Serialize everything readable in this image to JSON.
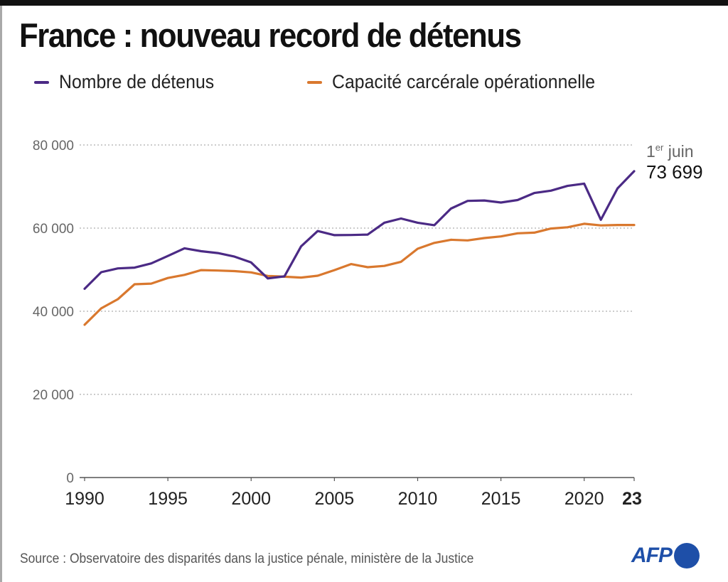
{
  "title": "France : nouveau record de détenus",
  "source": "Source : Observatoire des disparités dans la justice pénale, ministère de la Justice",
  "logo": {
    "text": "AFP",
    "icon": "afp-dot-logo",
    "color": "#1e4fa8"
  },
  "annotation": {
    "line1_number": "1",
    "line1_sup": "er",
    "line1_rest": " juin",
    "value": "73 699"
  },
  "colors": {
    "detenus": "#4b2a85",
    "capacite": "#d9782e",
    "grid": "#9a9a9a",
    "axis": "#555555"
  },
  "chart_data": {
    "type": "line",
    "title": "France : nouveau record de détenus",
    "xlabel": "",
    "ylabel": "",
    "xlim": [
      1990,
      2023
    ],
    "ylim": [
      0,
      80000
    ],
    "grid": true,
    "legend_position": "top-left",
    "x": [
      1990,
      1991,
      1992,
      1993,
      1994,
      1995,
      1996,
      1997,
      1998,
      1999,
      2000,
      2001,
      2002,
      2003,
      2004,
      2005,
      2006,
      2007,
      2008,
      2009,
      2010,
      2011,
      2012,
      2013,
      2014,
      2015,
      2016,
      2017,
      2018,
      2019,
      2020,
      2021,
      2022,
      2023
    ],
    "x_ticks": [
      {
        "value": 1990,
        "label": "1990",
        "bold": false
      },
      {
        "value": 1995,
        "label": "1995",
        "bold": false
      },
      {
        "value": 2000,
        "label": "2000",
        "bold": false
      },
      {
        "value": 2005,
        "label": "2005",
        "bold": false
      },
      {
        "value": 2010,
        "label": "2010",
        "bold": false
      },
      {
        "value": 2015,
        "label": "2015",
        "bold": false
      },
      {
        "value": 2020,
        "label": "2020",
        "bold": false
      },
      {
        "value": 2023,
        "label": "23",
        "bold": true
      }
    ],
    "y_ticks": [
      {
        "value": 0,
        "label": "0"
      },
      {
        "value": 20000,
        "label": "20 000"
      },
      {
        "value": 40000,
        "label": "40 000"
      },
      {
        "value": 60000,
        "label": "60 000"
      },
      {
        "value": 80000,
        "label": "80 000"
      }
    ],
    "series": [
      {
        "name": "Nombre de détenus",
        "color": "#4b2a85",
        "values": [
          45400,
          49400,
          50300,
          50500,
          51500,
          53300,
          55150,
          54450,
          54000,
          53150,
          51750,
          47900,
          48400,
          55600,
          59300,
          58300,
          58350,
          58450,
          61300,
          62300,
          61300,
          60700,
          64700,
          66550,
          66650,
          66150,
          66750,
          68450,
          69000,
          70150,
          70700,
          62000,
          69550,
          73699
        ]
      },
      {
        "name": "Capacité carcérale opérationnelle",
        "color": "#d9782e",
        "values": [
          36750,
          40700,
          42900,
          46500,
          46650,
          48000,
          48750,
          49900,
          49800,
          49650,
          49350,
          48500,
          48300,
          48100,
          48550,
          49900,
          51350,
          50600,
          50900,
          51900,
          55050,
          56450,
          57200,
          57050,
          57600,
          58000,
          58750,
          58900,
          59900,
          60200,
          61050,
          60650,
          60750,
          60750
        ]
      }
    ],
    "annotations": [
      {
        "x": 2023,
        "series": "Nombre de détenus",
        "text": "1er juin 73 699"
      }
    ]
  }
}
